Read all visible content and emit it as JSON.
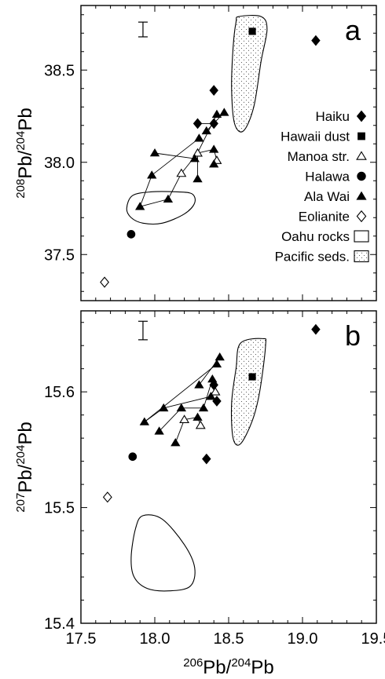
{
  "chart_data": [
    {
      "type": "scatter",
      "panel_label": "a",
      "ylabel": {
        "pre": "208",
        "base": "Pb/",
        "pre2": "204",
        "base2": "Pb"
      },
      "xlim": [
        17.5,
        19.5
      ],
      "ylim": [
        37.25,
        38.85
      ],
      "yticks": [
        37.5,
        38.0,
        38.5
      ],
      "ytick_labels": [
        "37.5",
        "38.0",
        "38.5"
      ],
      "xtick_labels_shown": false,
      "error_bar": {
        "x": 17.92,
        "y": 38.72,
        "half_height": 0.04
      },
      "series": [
        {
          "name": "Haiku",
          "marker": "diamond-filled",
          "points": [
            [
              18.4,
              38.39
            ],
            [
              18.29,
              38.21
            ],
            [
              18.4,
              38.21
            ],
            [
              19.09,
              38.66
            ]
          ]
        },
        {
          "name": "Hawaii dust",
          "marker": "square-filled",
          "points": [
            [
              18.66,
              38.71
            ]
          ]
        },
        {
          "name": "Manoa str.",
          "marker": "triangle-open",
          "points": [
            [
              18.18,
              37.94
            ],
            [
              18.29,
              38.05
            ],
            [
              18.42,
              38.01
            ]
          ]
        },
        {
          "name": "Halawa",
          "marker": "circle-filled",
          "points": [
            [
              17.84,
              37.61
            ]
          ]
        },
        {
          "name": "Ala Wai",
          "marker": "triangle-filled",
          "points": [
            [
              17.9,
              37.76
            ],
            [
              18.09,
              37.8
            ],
            [
              17.98,
              37.93
            ],
            [
              18.0,
              38.05
            ],
            [
              18.29,
              37.91
            ],
            [
              18.27,
              38.02
            ],
            [
              18.3,
              38.13
            ],
            [
              18.4,
              38.07
            ],
            [
              18.4,
              37.99
            ],
            [
              18.35,
              38.17
            ],
            [
              18.42,
              38.26
            ],
            [
              18.47,
              38.27
            ]
          ]
        },
        {
          "name": "Eolianite",
          "marker": "diamond-open",
          "points": [
            [
              17.66,
              37.35
            ]
          ]
        }
      ],
      "connections": [
        [
          [
            17.9,
            37.76
          ],
          [
            17.98,
            37.93
          ]
        ],
        [
          [
            17.9,
            37.76
          ],
          [
            18.09,
            37.8
          ]
        ],
        [
          [
            18.09,
            37.8
          ],
          [
            18.18,
            37.94
          ]
        ],
        [
          [
            17.98,
            37.93
          ],
          [
            18.3,
            38.13
          ]
        ],
        [
          [
            18.0,
            38.05
          ],
          [
            18.27,
            38.02
          ]
        ],
        [
          [
            18.27,
            38.02
          ],
          [
            18.42,
            38.26
          ]
        ],
        [
          [
            18.18,
            37.94
          ],
          [
            18.29,
            38.05
          ]
        ],
        [
          [
            18.29,
            37.91
          ],
          [
            18.29,
            38.05
          ]
        ],
        [
          [
            18.29,
            38.05
          ],
          [
            18.4,
            38.07
          ]
        ],
        [
          [
            18.4,
            38.07
          ],
          [
            18.42,
            38.01
          ]
        ],
        [
          [
            18.4,
            37.99
          ],
          [
            18.42,
            38.01
          ]
        ],
        [
          [
            18.35,
            38.17
          ],
          [
            18.47,
            38.27
          ]
        ],
        [
          [
            18.29,
            38.21
          ],
          [
            18.4,
            38.21
          ]
        ]
      ],
      "fields": [
        {
          "name": "Oahu rocks",
          "fill": "open",
          "outline": [
            [
              17.85,
              37.82
            ],
            [
              17.98,
              37.84
            ],
            [
              18.14,
              37.84
            ],
            [
              18.25,
              37.83
            ],
            [
              18.27,
              37.78
            ],
            [
              18.2,
              37.72
            ],
            [
              18.05,
              37.67
            ],
            [
              17.92,
              37.67
            ],
            [
              17.84,
              37.7
            ],
            [
              17.81,
              37.75
            ]
          ]
        },
        {
          "name": "Pacific seds.",
          "fill": "stippled",
          "outline": [
            [
              18.57,
              38.79
            ],
            [
              18.72,
              38.79
            ],
            [
              18.76,
              38.72
            ],
            [
              18.72,
              38.55
            ],
            [
              18.67,
              38.3
            ],
            [
              18.6,
              38.17
            ],
            [
              18.54,
              38.21
            ],
            [
              18.52,
              38.4
            ],
            [
              18.53,
              38.62
            ],
            [
              18.55,
              38.76
            ]
          ]
        }
      ],
      "legend": {
        "placement": "right",
        "entries": [
          {
            "label": "Haiku",
            "marker": "diamond-filled"
          },
          {
            "label": "Hawaii dust",
            "marker": "square-filled"
          },
          {
            "label": "Manoa str.",
            "marker": "triangle-open"
          },
          {
            "label": "Halawa",
            "marker": "circle-filled"
          },
          {
            "label": "Ala Wai",
            "marker": "triangle-filled"
          },
          {
            "label": "Eolianite",
            "marker": "diamond-open"
          },
          {
            "label": "Oahu rocks",
            "marker": "box-open"
          },
          {
            "label": "Pacific seds.",
            "marker": "box-stippled"
          }
        ]
      }
    },
    {
      "type": "scatter",
      "panel_label": "b",
      "ylabel": {
        "pre": "207",
        "base": "Pb/",
        "pre2": "204",
        "base2": "Pb"
      },
      "xlabel": {
        "pre": "206",
        "base": "Pb/",
        "pre2": "204",
        "base2": "Pb"
      },
      "xlim": [
        17.5,
        19.5
      ],
      "ylim": [
        15.4,
        15.67
      ],
      "xticks": [
        17.5,
        18.0,
        18.5,
        19.0,
        19.5
      ],
      "xtick_labels": [
        "17.5",
        "18.0",
        "18.5",
        "19.0",
        "19.5"
      ],
      "yticks": [
        15.4,
        15.5,
        15.6
      ],
      "ytick_labels": [
        "15.4",
        "15.5",
        "15.6"
      ],
      "error_bar": {
        "x": 17.92,
        "y": 15.653,
        "half_height": 0.008
      },
      "series": [
        {
          "name": "Haiku",
          "marker": "diamond-filled",
          "points": [
            [
              18.4,
              15.606
            ],
            [
              18.42,
              15.592
            ],
            [
              18.35,
              15.542
            ],
            [
              19.09,
              15.654
            ]
          ]
        },
        {
          "name": "Hawaii dust",
          "marker": "square-filled",
          "points": [
            [
              18.66,
              15.613
            ]
          ]
        },
        {
          "name": "Manoa str.",
          "marker": "triangle-open",
          "points": [
            [
              18.2,
              15.576
            ],
            [
              18.31,
              15.571
            ],
            [
              18.41,
              15.6
            ]
          ]
        },
        {
          "name": "Halawa",
          "marker": "circle-filled",
          "points": [
            [
              17.85,
              15.544
            ]
          ]
        },
        {
          "name": "Eolianite",
          "marker": "diamond-open",
          "points": [
            [
              17.68,
              15.509
            ]
          ]
        },
        {
          "name": "Ala Wai",
          "marker": "triangle-filled",
          "points": [
            [
              17.93,
              15.574
            ],
            [
              18.06,
              15.586
            ],
            [
              18.03,
              15.566
            ],
            [
              18.14,
              15.556
            ],
            [
              18.18,
              15.586
            ],
            [
              18.29,
              15.578
            ],
            [
              18.33,
              15.586
            ],
            [
              18.38,
              15.596
            ],
            [
              18.39,
              15.611
            ],
            [
              18.3,
              15.606
            ],
            [
              18.42,
              15.624
            ],
            [
              18.44,
              15.63
            ]
          ]
        }
      ],
      "connections": [
        [
          [
            17.93,
            15.574
          ],
          [
            18.06,
            15.586
          ]
        ],
        [
          [
            17.93,
            15.574
          ],
          [
            18.42,
            15.624
          ]
        ],
        [
          [
            18.06,
            15.586
          ],
          [
            18.38,
            15.596
          ]
        ],
        [
          [
            18.03,
            15.566
          ],
          [
            18.18,
            15.586
          ]
        ],
        [
          [
            18.14,
            15.556
          ],
          [
            18.2,
            15.576
          ]
        ],
        [
          [
            18.18,
            15.586
          ],
          [
            18.33,
            15.586
          ]
        ],
        [
          [
            18.2,
            15.576
          ],
          [
            18.29,
            15.578
          ]
        ],
        [
          [
            18.29,
            15.578
          ],
          [
            18.31,
            15.571
          ]
        ],
        [
          [
            18.3,
            15.606
          ],
          [
            18.44,
            15.63
          ]
        ],
        [
          [
            18.33,
            15.586
          ],
          [
            18.39,
            15.611
          ]
        ],
        [
          [
            18.38,
            15.596
          ],
          [
            18.41,
            15.6
          ]
        ]
      ],
      "fields": [
        {
          "name": "Oahu rocks",
          "fill": "open",
          "outline": [
            [
              17.92,
              15.493
            ],
            [
              18.05,
              15.49
            ],
            [
              18.2,
              15.468
            ],
            [
              18.27,
              15.448
            ],
            [
              18.24,
              15.432
            ],
            [
              18.1,
              15.428
            ],
            [
              17.95,
              15.43
            ],
            [
              17.86,
              15.44
            ],
            [
              17.84,
              15.457
            ],
            [
              17.87,
              15.482
            ]
          ]
        },
        {
          "name": "Pacific seds.",
          "fill": "stippled",
          "outline": [
            [
              18.58,
              15.642
            ],
            [
              18.73,
              15.646
            ],
            [
              18.75,
              15.64
            ],
            [
              18.71,
              15.6
            ],
            [
              18.66,
              15.575
            ],
            [
              18.58,
              15.555
            ],
            [
              18.53,
              15.56
            ],
            [
              18.52,
              15.59
            ],
            [
              18.55,
              15.62
            ]
          ]
        }
      ]
    }
  ]
}
